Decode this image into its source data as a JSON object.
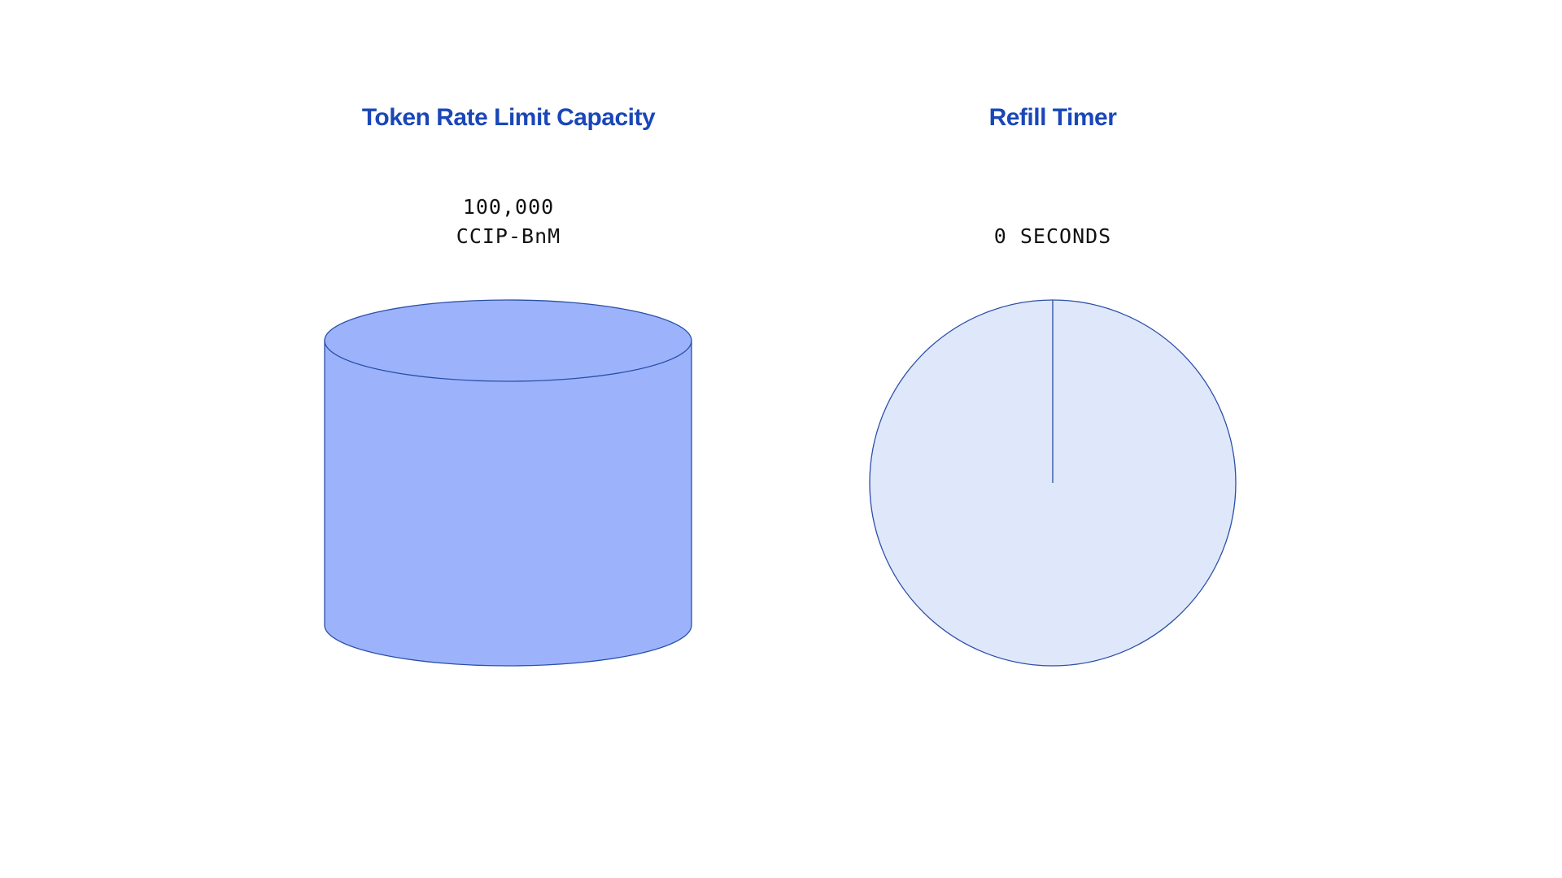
{
  "capacity": {
    "title": "Token Rate Limit Capacity",
    "amount": "100,000",
    "token": "CCIP-BnM",
    "fill_fraction": 1.0
  },
  "timer": {
    "title": "Refill Timer",
    "value": "0 SECONDS",
    "elapsed_fraction": 0
  },
  "colors": {
    "title": "#1a47b8",
    "cylinder_fill": "#9cb3fc",
    "outline": "#2a4fa8",
    "timer_fill": "#dfe7fa"
  }
}
